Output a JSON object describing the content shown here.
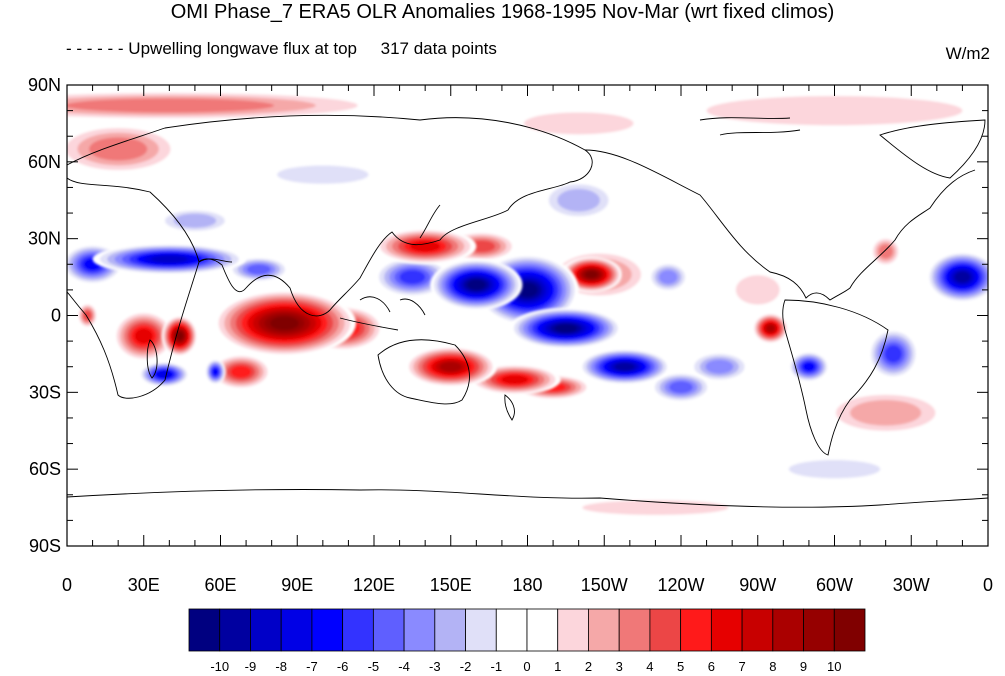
{
  "title": "OMI Phase_7 ERA5 OLR Anomalies 1968-1995 Nov-Mar (wrt fixed climos)",
  "left_string": "- - - - - - Upwelling longwave flux at top     317 data points",
  "units": "W/m2",
  "map": {
    "projection": "cylindrical-equidistant",
    "lon_range": [
      0,
      360
    ],
    "lat_range": [
      -90,
      90
    ],
    "lat_labels": [
      {
        "lat": 90,
        "text": "90N"
      },
      {
        "lat": 60,
        "text": "60N"
      },
      {
        "lat": 30,
        "text": "30N"
      },
      {
        "lat": 0,
        "text": "0"
      },
      {
        "lat": -30,
        "text": "30S"
      },
      {
        "lat": -60,
        "text": "60S"
      },
      {
        "lat": -90,
        "text": "90S"
      }
    ],
    "lon_labels": [
      {
        "lon": 0,
        "text": "0"
      },
      {
        "lon": 30,
        "text": "30E"
      },
      {
        "lon": 60,
        "text": "60E"
      },
      {
        "lon": 90,
        "text": "90E"
      },
      {
        "lon": 120,
        "text": "120E"
      },
      {
        "lon": 150,
        "text": "150E"
      },
      {
        "lon": 180,
        "text": "180"
      },
      {
        "lon": 210,
        "text": "150W"
      },
      {
        "lon": 240,
        "text": "120W"
      },
      {
        "lon": 270,
        "text": "90W"
      },
      {
        "lon": 300,
        "text": "60W"
      },
      {
        "lon": 330,
        "text": "30W"
      },
      {
        "lon": 360,
        "text": "0"
      }
    ],
    "anomaly_features": [
      {
        "lon": 85,
        "lat": -3,
        "rlon": 28,
        "rlat": 13,
        "value": 11
      },
      {
        "lon": 108,
        "lat": -5,
        "rlon": 16,
        "rlat": 9,
        "value": 7
      },
      {
        "lon": 68,
        "lat": -22,
        "rlon": 12,
        "rlat": 7,
        "value": 6
      },
      {
        "lon": 150,
        "lat": -20,
        "rlon": 18,
        "rlat": 8,
        "value": 9
      },
      {
        "lon": 175,
        "lat": -25,
        "rlon": 18,
        "rlat": 6,
        "value": 7
      },
      {
        "lon": 190,
        "lat": -28,
        "rlon": 15,
        "rlat": 5,
        "value": 6
      },
      {
        "lon": 140,
        "lat": 27,
        "rlon": 20,
        "rlat": 7,
        "value": 7
      },
      {
        "lon": 162,
        "lat": 27,
        "rlon": 14,
        "rlat": 6,
        "value": 5
      },
      {
        "lon": 205,
        "lat": 16,
        "rlon": 12,
        "rlat": 7,
        "value": 11
      },
      {
        "lon": 208,
        "lat": 16,
        "rlon": 20,
        "rlat": 10,
        "value": 4
      },
      {
        "lon": 30,
        "lat": -8,
        "rlon": 12,
        "rlat": 10,
        "value": 7
      },
      {
        "lon": 44,
        "lat": -8,
        "rlon": 7,
        "rlat": 8,
        "value": 11
      },
      {
        "lon": 8,
        "lat": 0,
        "rlon": 4,
        "rlat": 5,
        "value": 5
      },
      {
        "lon": 275,
        "lat": -5,
        "rlon": 7,
        "rlat": 6,
        "value": 9
      },
      {
        "lon": 320,
        "lat": 25,
        "rlon": 6,
        "rlat": 6,
        "value": 4
      },
      {
        "lon": 270,
        "lat": 10,
        "rlon": 12,
        "rlat": 8,
        "value": 2
      },
      {
        "lon": 40,
        "lat": 82,
        "rlon": 90,
        "rlat": 6,
        "value": 4
      },
      {
        "lon": 300,
        "lat": 80,
        "rlon": 70,
        "rlat": 8,
        "value": 2
      },
      {
        "lon": 20,
        "lat": 65,
        "rlon": 25,
        "rlat": 10,
        "value": 4
      },
      {
        "lon": 200,
        "lat": 75,
        "rlon": 30,
        "rlat": 6,
        "value": 2
      },
      {
        "lon": 320,
        "lat": -38,
        "rlon": 25,
        "rlat": 9,
        "value": 3
      },
      {
        "lon": 230,
        "lat": -75,
        "rlon": 40,
        "rlat": 4,
        "value": 2
      },
      {
        "lon": 180,
        "lat": 10,
        "rlon": 20,
        "rlat": 14,
        "value": -11
      },
      {
        "lon": 160,
        "lat": 12,
        "rlon": 18,
        "rlat": 10,
        "value": -11
      },
      {
        "lon": 195,
        "lat": -5,
        "rlon": 22,
        "rlat": 8,
        "value": -11
      },
      {
        "lon": 218,
        "lat": -20,
        "rlon": 18,
        "rlat": 7,
        "value": -10
      },
      {
        "lon": 240,
        "lat": -28,
        "rlon": 12,
        "rlat": 6,
        "value": -5
      },
      {
        "lon": 135,
        "lat": 15,
        "rlon": 15,
        "rlat": 8,
        "value": -6
      },
      {
        "lon": 40,
        "lat": 22,
        "rlon": 30,
        "rlat": 6,
        "value": -9
      },
      {
        "lon": 10,
        "lat": 20,
        "rlon": 12,
        "rlat": 8,
        "value": -7
      },
      {
        "lon": 75,
        "lat": 18,
        "rlon": 12,
        "rlat": 5,
        "value": -5
      },
      {
        "lon": 350,
        "lat": 15,
        "rlon": 14,
        "rlat": 10,
        "value": -10
      },
      {
        "lon": 323,
        "lat": -15,
        "rlon": 10,
        "rlat": 10,
        "value": -6
      },
      {
        "lon": 290,
        "lat": -20,
        "rlon": 8,
        "rlat": 6,
        "value": -7
      },
      {
        "lon": 255,
        "lat": -20,
        "rlon": 12,
        "rlat": 6,
        "value": -4
      },
      {
        "lon": 38,
        "lat": -23,
        "rlon": 10,
        "rlat": 5,
        "value": -8
      },
      {
        "lon": 58,
        "lat": -22,
        "rlon": 4,
        "rlat": 5,
        "value": -7
      },
      {
        "lon": 235,
        "lat": 15,
        "rlon": 8,
        "rlat": 6,
        "value": -4
      },
      {
        "lon": 200,
        "lat": 45,
        "rlon": 15,
        "rlat": 8,
        "value": -3
      },
      {
        "lon": 100,
        "lat": 55,
        "rlon": 25,
        "rlat": 5,
        "value": -2
      },
      {
        "lon": 50,
        "lat": 37,
        "rlon": 15,
        "rlat": 5,
        "value": -3
      },
      {
        "lon": 300,
        "lat": -60,
        "rlon": 25,
        "rlat": 5,
        "value": -2
      }
    ]
  },
  "colorbar": {
    "labels": [
      "-10",
      "-9",
      "-8",
      "-7",
      "-6",
      "-5",
      "-4",
      "-3",
      "-2",
      "-1",
      "0",
      "1",
      "2",
      "3",
      "4",
      "5",
      "6",
      "7",
      "8",
      "9",
      "10"
    ],
    "colors": [
      "#000080",
      "#0000a0",
      "#0000c8",
      "#0000e6",
      "#0000ff",
      "#3333ff",
      "#5f5fff",
      "#8a8aff",
      "#b3b3f5",
      "#e0e0f8",
      "#ffffff",
      "#ffffff",
      "#fcd6dc",
      "#f5a8a8",
      "#f07878",
      "#ec4646",
      "#ff1a1a",
      "#e60000",
      "#c80000",
      "#aa0000",
      "#960000",
      "#800000"
    ]
  }
}
